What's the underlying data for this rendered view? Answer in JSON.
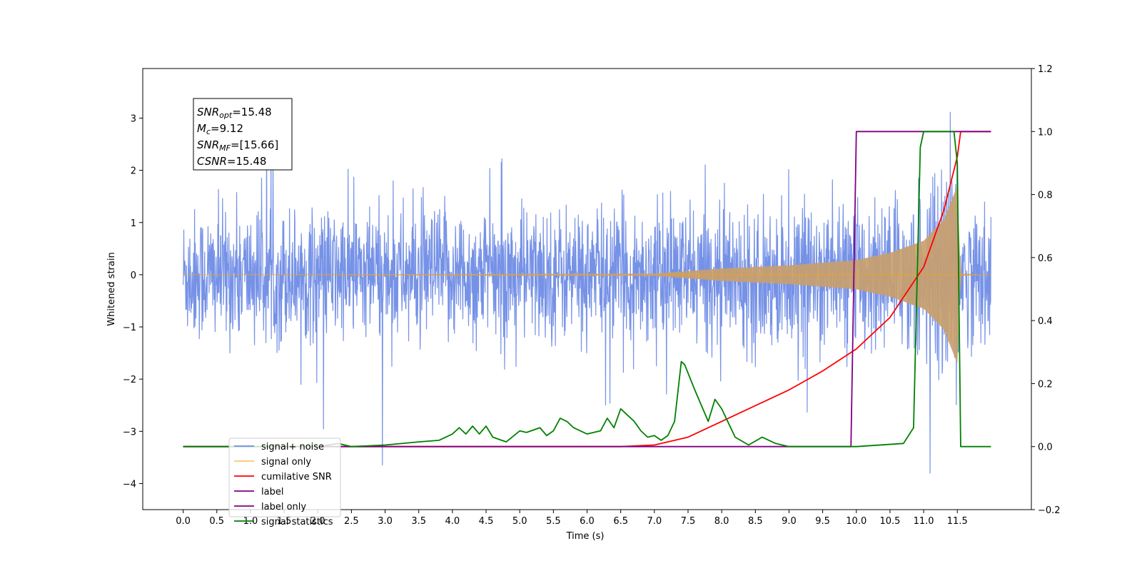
{
  "chart_data": {
    "type": "line",
    "title": "",
    "xlabel": "Time (s)",
    "ylabel": "Whitened strain",
    "y2label": "",
    "xlim": [
      -0.6,
      12.6
    ],
    "ylim": [
      -4.5,
      3.95
    ],
    "y2lim": [
      -0.2,
      1.2
    ],
    "x_ticks": [
      "0.0",
      "0.5",
      "1.0",
      "1.5",
      "2.0",
      "2.5",
      "3.0",
      "3.5",
      "4.0",
      "4.5",
      "5.0",
      "5.5",
      "6.0",
      "6.5",
      "7.0",
      "7.5",
      "8.0",
      "8.5",
      "9.0",
      "9.5",
      "10.0",
      "10.5",
      "11.0",
      "11.5"
    ],
    "y_ticks": [
      -4,
      -3,
      -2,
      -1,
      0,
      1,
      2,
      3
    ],
    "y_tick_labels": [
      "−4",
      "−3",
      "−2",
      "−1",
      "0",
      "1",
      "2",
      "3"
    ],
    "y2_ticks": [
      -0.2,
      0.0,
      0.2,
      0.4,
      0.6,
      0.8,
      1.0,
      1.2
    ],
    "y2_tick_labels": [
      "−0.2",
      "0.0",
      "0.2",
      "0.4",
      "0.6",
      "0.8",
      "1.0",
      "1.2"
    ],
    "grid": false,
    "legend_position": "lower-left",
    "annotation": {
      "snr_opt": {
        "base": "SNR",
        "sub": "opt",
        "value": "=15.48"
      },
      "mc": {
        "base": "M",
        "sub": "c",
        "value": "=9.12"
      },
      "snr_mf": {
        "base": "SNR",
        "sub": "MF",
        "value": "=[15.66]"
      },
      "csnr": {
        "base": "CSNR",
        "value": "=15.48"
      }
    },
    "series": [
      {
        "name": "signal+ noise",
        "color": "#6f8ce6",
        "axis": "left",
        "kind": "noisy-band",
        "x_range": [
          0.0,
          12.0
        ],
        "typical_amplitude": 1.3,
        "peak_max": 3.6,
        "peak_min": -4.1
      },
      {
        "name": "signal only",
        "color": "#ffa500",
        "axis": "left",
        "kind": "chirp",
        "x_range": [
          0.0,
          12.0
        ],
        "envelope_points": [
          [
            0.0,
            0.0
          ],
          [
            7.0,
            0.02
          ],
          [
            8.0,
            0.12
          ],
          [
            9.0,
            0.18
          ],
          [
            10.0,
            0.28
          ],
          [
            10.5,
            0.42
          ],
          [
            11.0,
            0.65
          ],
          [
            11.3,
            1.05
          ],
          [
            11.5,
            1.7
          ],
          [
            11.55,
            0.02
          ],
          [
            12.0,
            0.0
          ]
        ]
      },
      {
        "name": "cumilative SNR",
        "color": "#ff0000",
        "axis": "right",
        "x": [
          0.0,
          6.5,
          7.0,
          7.5,
          8.0,
          8.5,
          9.0,
          9.5,
          10.0,
          10.5,
          11.0,
          11.3,
          11.5,
          11.55,
          12.0
        ],
        "y": [
          0.0,
          0.0,
          0.005,
          0.03,
          0.08,
          0.13,
          0.18,
          0.24,
          0.31,
          0.41,
          0.57,
          0.75,
          0.92,
          1.0,
          1.0
        ]
      },
      {
        "name": "label",
        "color": "#800080",
        "axis": "right",
        "x": [
          0.0,
          9.92,
          10.0,
          12.0
        ],
        "y": [
          0.0,
          0.0,
          1.0,
          1.0
        ]
      },
      {
        "name": "label only",
        "color": "#800080",
        "axis": "right",
        "hidden_behind_legend": true,
        "x": [],
        "y": []
      },
      {
        "name": "signal statistics",
        "color": "#008000",
        "axis": "right",
        "x": [
          0.0,
          2.0,
          2.3,
          2.5,
          3.0,
          3.5,
          3.8,
          4.0,
          4.1,
          4.2,
          4.3,
          4.4,
          4.5,
          4.6,
          4.8,
          5.0,
          5.1,
          5.3,
          5.4,
          5.5,
          5.6,
          5.7,
          5.8,
          6.0,
          6.2,
          6.3,
          6.4,
          6.5,
          6.6,
          6.7,
          6.8,
          6.9,
          7.0,
          7.1,
          7.2,
          7.3,
          7.4,
          7.45,
          7.6,
          7.8,
          7.9,
          8.0,
          8.2,
          8.4,
          8.6,
          8.8,
          9.0,
          10.0,
          10.7,
          10.85,
          10.95,
          11.0,
          11.1,
          11.3,
          11.45,
          11.5,
          11.55,
          12.0
        ],
        "y": [
          0.0,
          0.0,
          0.01,
          0.0,
          0.005,
          0.015,
          0.02,
          0.04,
          0.06,
          0.04,
          0.065,
          0.04,
          0.065,
          0.03,
          0.015,
          0.05,
          0.045,
          0.06,
          0.035,
          0.05,
          0.09,
          0.08,
          0.06,
          0.04,
          0.05,
          0.09,
          0.06,
          0.12,
          0.1,
          0.08,
          0.05,
          0.03,
          0.035,
          0.02,
          0.035,
          0.08,
          0.27,
          0.26,
          0.18,
          0.08,
          0.15,
          0.12,
          0.03,
          0.005,
          0.03,
          0.01,
          0.0,
          0.0,
          0.01,
          0.06,
          0.95,
          1.0,
          1.0,
          1.0,
          1.0,
          0.9,
          0.0,
          0.0
        ]
      }
    ]
  }
}
